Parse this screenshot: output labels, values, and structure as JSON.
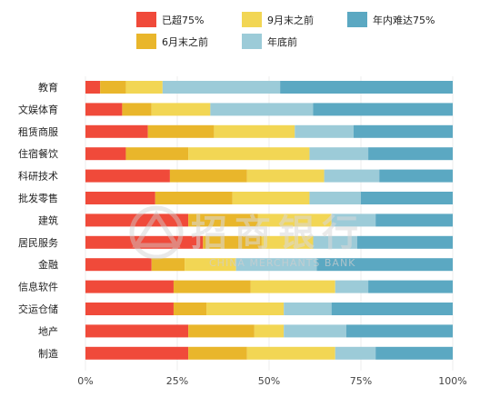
{
  "chart_data": {
    "type": "bar",
    "orientation": "horizontal",
    "stacked": true,
    "title": "",
    "xlabel": "",
    "ylabel": "",
    "xlim": [
      0,
      100
    ],
    "x_ticks": [
      "0%",
      "25%",
      "50%",
      "75%",
      "100%"
    ],
    "grid": true,
    "legend_position": "top",
    "categories": [
      "教育",
      "文娱体育",
      "租赁商服",
      "住宿餐饮",
      "科研技术",
      "批发零售",
      "建筑",
      "居民服务",
      "金融",
      "信息软件",
      "交运仓储",
      "地产",
      "制造"
    ],
    "series": [
      {
        "name": "已超75%",
        "color": "#f04a3a",
        "values": [
          4,
          10,
          17,
          11,
          23,
          19,
          28,
          32,
          18,
          24,
          24,
          28,
          28
        ]
      },
      {
        "name": "6月末之前",
        "color": "#e9b62b",
        "values": [
          7,
          8,
          18,
          17,
          21,
          21,
          19,
          16,
          9,
          21,
          9,
          18,
          16
        ]
      },
      {
        "name": "9月末之前",
        "color": "#f2d654",
        "values": [
          10,
          16,
          22,
          33,
          21,
          21,
          20,
          14,
          14,
          23,
          21,
          8,
          24
        ]
      },
      {
        "name": "年底前",
        "color": "#9ccbd8",
        "values": [
          32,
          28,
          16,
          16,
          15,
          14,
          12,
          12,
          22,
          9,
          13,
          17,
          11
        ]
      },
      {
        "name": "年内难达75%",
        "color": "#5ba8c2",
        "values": [
          47,
          38,
          27,
          23,
          20,
          25,
          21,
          26,
          37,
          23,
          33,
          29,
          21
        ]
      }
    ]
  },
  "watermark": {
    "text_cn": "招商银行",
    "text_en": "CHINA MERCHANTS BANK"
  }
}
